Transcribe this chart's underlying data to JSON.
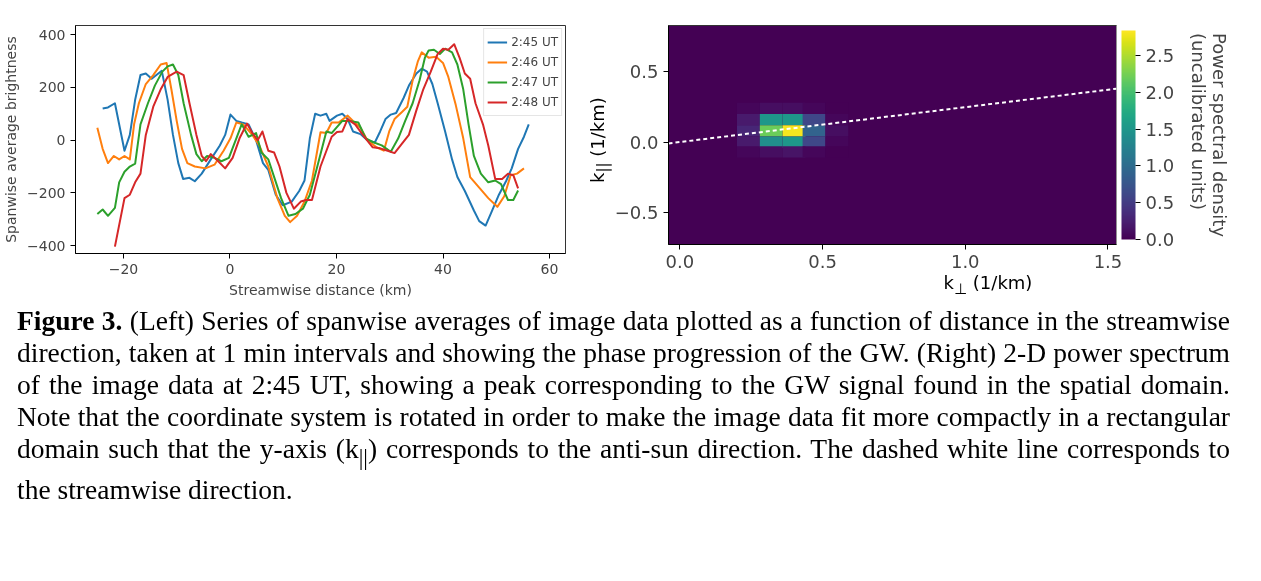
{
  "chart_data": [
    {
      "type": "line",
      "xlabel": "Streamwise distance (km)",
      "ylabel": "Spanwise average brightness",
      "xlim": [
        -29,
        63
      ],
      "ylim": [
        -430,
        435
      ],
      "xticks": [
        {
          "value": -20,
          "label": "−20"
        },
        0,
        20,
        40,
        60
      ],
      "yticks": [
        {
          "value": -400,
          "label": "−400"
        },
        {
          "value": -200,
          "label": "−200"
        },
        0,
        200,
        400
      ],
      "grid": false,
      "legend": "top right",
      "line_style": "solid",
      "series": [
        {
          "name": "2:45 UT",
          "color": "#1f77b4",
          "x": [
            -23.9,
            -22.9,
            -21.6,
            -19.8,
            -18.8,
            -17.8,
            -16.8,
            -15.8,
            -14.7,
            -12.8,
            -11.7,
            -10.7,
            -9.7,
            -8.8,
            -7.6,
            -6.6,
            -5.3,
            -3.6,
            -1.9,
            -0.9,
            0.1,
            1.2,
            2.2,
            3.5,
            4.9,
            6.2,
            7.2,
            8.6,
            9.9,
            11.6,
            13.0,
            14.0,
            15.0,
            16.0,
            17.0,
            18.1,
            18.7,
            20.1,
            21.1,
            22.1,
            23.1,
            24.5,
            25.8,
            27.2,
            28.2,
            29.2,
            30.2,
            31.2,
            32.6,
            33.6,
            35.0,
            36.0,
            37.0,
            38.0,
            39.0,
            40.4,
            41.7,
            42.7,
            44.1,
            45.8,
            46.8,
            48.0,
            49.1,
            50.5,
            51.9,
            52.9,
            54.1,
            55.2,
            56.1
          ],
          "values": [
            120,
            124,
            140,
            -40,
            20,
            153,
            247,
            253,
            233,
            263,
            153,
            20,
            -87,
            -147,
            -143,
            -156,
            -127,
            -73,
            -20,
            20,
            97,
            73,
            67,
            60,
            0,
            -87,
            -113,
            -207,
            -247,
            -233,
            -193,
            -153,
            7,
            100,
            93,
            100,
            73,
            93,
            100,
            80,
            33,
            23,
            0,
            -9,
            33,
            80,
            97,
            103,
            160,
            207,
            253,
            271,
            260,
            213,
            140,
            33,
            -73,
            -140,
            -193,
            -267,
            -307,
            -324,
            -273,
            -207,
            -153,
            -107,
            -33,
            13,
            60
          ]
        },
        {
          "name": "2:46 UT",
          "color": "#ff7f0e",
          "x": [
            -24.9,
            -23.9,
            -22.9,
            -21.8,
            -20.8,
            -19.8,
            -18.8,
            -18.0,
            -17.1,
            -15.8,
            -14.4,
            -13.0,
            -11.9,
            -11.0,
            -10.0,
            -9.0,
            -8.0,
            -6.6,
            -4.6,
            -2.9,
            -1.2,
            0.1,
            1.2,
            2.5,
            4.2,
            5.5,
            7.2,
            8.9,
            10.3,
            11.3,
            12.6,
            14.0,
            15.4,
            17.0,
            18.1,
            19.1,
            20.4,
            22.1,
            23.1,
            24.5,
            25.8,
            27.5,
            28.9,
            29.9,
            30.9,
            32.3,
            33.3,
            34.3,
            35.3,
            36.0,
            37.3,
            38.7,
            40.0,
            41.0,
            42.4,
            43.8,
            45.1,
            46.8,
            48.5,
            50.2,
            51.5,
            52.7,
            53.9,
            55.2
          ],
          "values": [
            47,
            -33,
            -87,
            -60,
            -73,
            -60,
            -73,
            60,
            140,
            213,
            247,
            287,
            293,
            193,
            73,
            -33,
            -87,
            -100,
            -107,
            -93,
            -40,
            7,
            67,
            60,
            20,
            -20,
            -100,
            -220,
            -287,
            -311,
            -287,
            -233,
            -153,
            30,
            27,
            67,
            67,
            93,
            73,
            47,
            0,
            -27,
            -40,
            33,
            80,
            107,
            127,
            227,
            300,
            333,
            313,
            316,
            293,
            240,
            133,
            7,
            -140,
            -180,
            -220,
            -253,
            -213,
            -133,
            -127,
            -107
          ]
        },
        {
          "name": "2:47 UT",
          "color": "#2ca02c",
          "x": [
            -24.9,
            -23.9,
            -22.9,
            -21.6,
            -20.8,
            -19.8,
            -18.8,
            -17.8,
            -16.8,
            -15.4,
            -14.1,
            -12.7,
            -11.7,
            -10.7,
            -9.7,
            -8.7,
            -7.3,
            -6.3,
            -5.3,
            -4.3,
            -2.9,
            -1.6,
            -0.2,
            1.2,
            2.2,
            3.5,
            4.9,
            5.9,
            7.2,
            8.3,
            9.6,
            11.0,
            12.3,
            13.7,
            15.0,
            16.4,
            18.1,
            19.1,
            21.1,
            22.5,
            24.1,
            25.5,
            26.8,
            28.5,
            30.2,
            31.6,
            32.9,
            34.3,
            35.6,
            36.6,
            37.3,
            38.3,
            39.4,
            40.4,
            41.7,
            42.7,
            43.8,
            44.8,
            45.8,
            47.1,
            48.5,
            49.8,
            50.9,
            52.2,
            53.2,
            54.1
          ],
          "values": [
            -280,
            -263,
            -287,
            -257,
            -160,
            -120,
            -100,
            -89,
            60,
            140,
            207,
            260,
            280,
            287,
            247,
            140,
            20,
            -53,
            -80,
            -60,
            -67,
            -80,
            -67,
            7,
            60,
            13,
            27,
            -47,
            -73,
            -140,
            -220,
            -287,
            -280,
            -260,
            -207,
            -100,
            33,
            27,
            73,
            73,
            67,
            7,
            -7,
            -20,
            -44,
            7,
            73,
            140,
            227,
            313,
            340,
            343,
            327,
            347,
            333,
            287,
            193,
            60,
            -60,
            -127,
            -160,
            -153,
            -167,
            -227,
            -227,
            -191
          ]
        },
        {
          "name": "2:48 UT",
          "color": "#d62728",
          "x": [
            -21.6,
            -19.8,
            -18.8,
            -17.8,
            -16.8,
            -15.8,
            -14.4,
            -13.0,
            -11.7,
            -10.0,
            -8.7,
            -7.6,
            -6.3,
            -5.3,
            -4.5,
            -3.6,
            -2.2,
            -0.9,
            0.5,
            1.8,
            3.2,
            4.2,
            5.2,
            6.1,
            7.2,
            8.3,
            9.3,
            10.6,
            12.0,
            13.3,
            14.3,
            15.4,
            17.0,
            19.1,
            20.1,
            21.1,
            22.1,
            23.5,
            25.2,
            26.8,
            28.2,
            29.6,
            30.9,
            32.3,
            33.6,
            35.0,
            36.3,
            37.7,
            39.0,
            40.0,
            41.0,
            42.1,
            43.1,
            44.1,
            45.1,
            46.1,
            47.5,
            48.5,
            49.8,
            51.1,
            52.2,
            53.2,
            54.1
          ],
          "values": [
            -404,
            -220,
            -207,
            -160,
            -127,
            20,
            127,
            193,
            240,
            260,
            247,
            140,
            20,
            -60,
            -80,
            -53,
            -80,
            -107,
            -67,
            7,
            63,
            27,
            0,
            33,
            -40,
            -47,
            -100,
            -200,
            -260,
            -233,
            -227,
            -227,
            -100,
            13,
            31,
            33,
            80,
            60,
            13,
            -27,
            -31,
            -40,
            -49,
            -13,
            20,
            113,
            193,
            260,
            327,
            347,
            343,
            364,
            313,
            253,
            233,
            140,
            60,
            -20,
            -147,
            -147,
            -127,
            -133,
            -183
          ]
        }
      ],
      "annotations": [
        "Figure 3.",
        "(Left) Series of spanwise averages of image data plotted as a function of distance in the streamwise direction, taken at 1 min intervals and showing the phase progression of the GW. (Right) 2-D power spectrum of the image data at 2:45 UT, showing a peak corresponding to the GW signal found in the spatial domain. Note that the coordinate system is rotated in order to make the image data fit more compactly in a rectangular domain such that the y-axis (k$_{||}$) corresponds to the anti-sun direction. The dashed white line corresponds to the streamwise direction."
      ]
    },
    {
      "type": "heatmap",
      "xlabel": "k$_{⊥}$ (1/km)",
      "ylabel": "k$_{||}$ (1/km)",
      "clabel": "Power spectral density (uncalibrated units)",
      "xlim": [
        -0.04,
        1.53
      ],
      "ylim": [
        -0.73,
        0.83
      ],
      "xticks": [
        {
          "value": 0,
          "label": "0.0"
        },
        0.5,
        {
          "value": 1,
          "label": "1.0"
        },
        1.5
      ],
      "yticks": [
        {
          "value": -0.5,
          "label": "−0.5"
        },
        {
          "value": 0,
          "label": "0.0"
        },
        0.5
      ],
      "x": [
        0.24,
        0.32,
        0.4,
        0.47,
        0.55
      ],
      "y": [
        0.24,
        0.16,
        0.08,
        0.0,
        -0.07
      ],
      "cells": [
        [
          0.05,
          0.1,
          0.1,
          0.05,
          0.0
        ],
        [
          0.2,
          1.5,
          1.5,
          0.6,
          0.05
        ],
        [
          0.3,
          2.2,
          2.8,
          0.9,
          0.1
        ],
        [
          0.2,
          1.4,
          1.5,
          0.6,
          0.05
        ],
        [
          0.05,
          0.1,
          0.15,
          0.05,
          0.0
        ]
      ],
      "clim": [
        0,
        2.84
      ],
      "cticks": [
        {
          "value": 0,
          "label": "0.0"
        },
        0.5,
        {
          "value": 1,
          "label": "1.0"
        },
        1.5,
        {
          "value": 2,
          "label": "2.0"
        },
        2.5
      ],
      "series": [
        {
          "type": "line",
          "color": "#ffffff",
          "line_style": "dashed",
          "x": [
            -0.04,
            1.53
          ],
          "values": [
            -0.01,
            0.38
          ]
        }
      ]
    }
  ]
}
